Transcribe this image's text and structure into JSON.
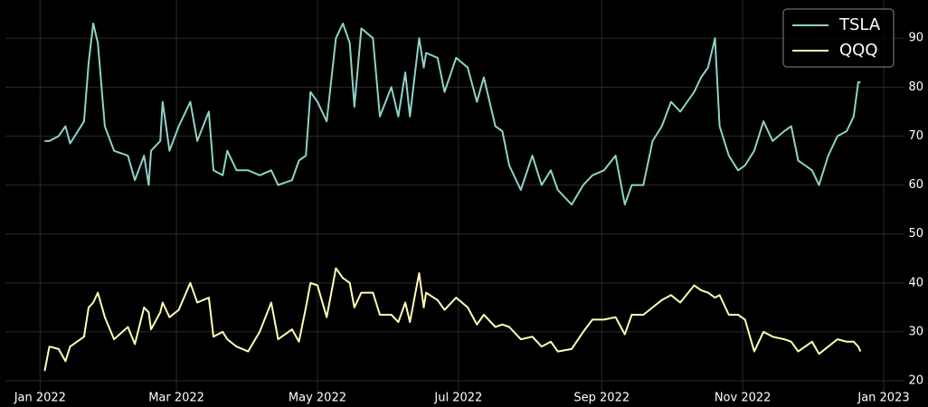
{
  "chart_data": {
    "type": "line",
    "x": [
      2,
      4,
      8,
      11,
      13,
      19,
      21,
      23,
      25,
      28,
      32,
      38,
      41,
      45,
      47,
      48,
      52,
      53,
      56,
      60,
      65,
      68,
      73,
      75,
      79,
      81,
      85,
      90,
      95,
      100,
      103,
      109,
      112,
      115,
      117,
      120,
      124,
      128,
      131,
      134,
      136,
      139,
      144,
      147,
      152,
      155,
      158,
      160,
      164,
      166,
      167,
      172,
      175,
      180,
      185,
      189,
      192,
      197,
      200,
      203,
      208,
      213,
      217,
      221,
      224,
      230,
      235,
      239,
      244,
      249,
      253,
      256,
      261,
      265,
      269,
      273,
      277,
      283,
      286,
      289,
      292,
      294,
      298,
      302,
      305,
      309,
      313,
      317,
      322,
      325,
      328,
      334,
      337,
      341,
      345,
      349,
      352,
      354,
      355
    ],
    "series": [
      {
        "name": "TSLA",
        "color": "#8dd3c7",
        "values": [
          69,
          69,
          70,
          72,
          68.5,
          73,
          85,
          93,
          89,
          72,
          67,
          66,
          61,
          66,
          60,
          67,
          69,
          77,
          67,
          72,
          77,
          69,
          75,
          63,
          62,
          67,
          63,
          63,
          62,
          63,
          60,
          61,
          65,
          66,
          79,
          77,
          73,
          90,
          93,
          89,
          76,
          92,
          90,
          74,
          80,
          74,
          83,
          74,
          90,
          84,
          87,
          86,
          79,
          86,
          84,
          77,
          82,
          72,
          71,
          64,
          59,
          66,
          60,
          63,
          59,
          56,
          60,
          62,
          63,
          66,
          56,
          60,
          60,
          69,
          72,
          77,
          75,
          79,
          82,
          84,
          90,
          72,
          66,
          63,
          64,
          67,
          73,
          69,
          71,
          72,
          65,
          63,
          60,
          66,
          70,
          71,
          74,
          81,
          81
        ]
      },
      {
        "name": "QQQ",
        "color": "#ffffb3",
        "values": [
          22,
          27,
          26.5,
          24,
          27,
          29,
          35,
          36,
          38,
          33,
          28.5,
          31,
          27.5,
          35,
          34,
          30.5,
          34,
          36,
          33,
          34.5,
          40,
          36,
          37,
          29,
          30,
          28.5,
          27,
          26,
          30,
          36,
          28.5,
          30.5,
          28,
          35,
          40,
          39.5,
          33,
          43,
          41,
          40,
          35,
          38,
          38,
          33.5,
          33.5,
          32,
          36,
          32,
          42,
          35,
          38,
          36.5,
          34.5,
          37,
          35,
          31.5,
          33.5,
          31,
          31.5,
          31,
          28.5,
          29,
          27,
          28,
          26,
          26.5,
          30,
          32.5,
          32.5,
          33,
          29.5,
          33.5,
          33.5,
          35,
          36.5,
          37.5,
          36,
          39.5,
          38.5,
          38,
          37,
          37.5,
          33.5,
          33.5,
          32.5,
          26,
          30,
          29,
          28.5,
          28,
          26,
          28,
          25.5,
          27,
          28.5,
          28,
          28,
          27,
          26
        ]
      }
    ],
    "xlim": [
      -15,
      374
    ],
    "xticks": [
      {
        "value": 0,
        "label": "Jan 2022"
      },
      {
        "value": 59,
        "label": "Mar 2022"
      },
      {
        "value": 120,
        "label": "May 2022"
      },
      {
        "value": 181,
        "label": "Jul 2022"
      },
      {
        "value": 243,
        "label": "Sep 2022"
      },
      {
        "value": 304,
        "label": "Nov 2022"
      },
      {
        "value": 365,
        "label": "Jan 2023"
      }
    ],
    "ylim": [
      16.5,
      97.8
    ],
    "yticks": [
      20,
      30,
      40,
      50,
      60,
      70,
      80,
      90
    ],
    "grid": true,
    "legend": "upper right"
  }
}
